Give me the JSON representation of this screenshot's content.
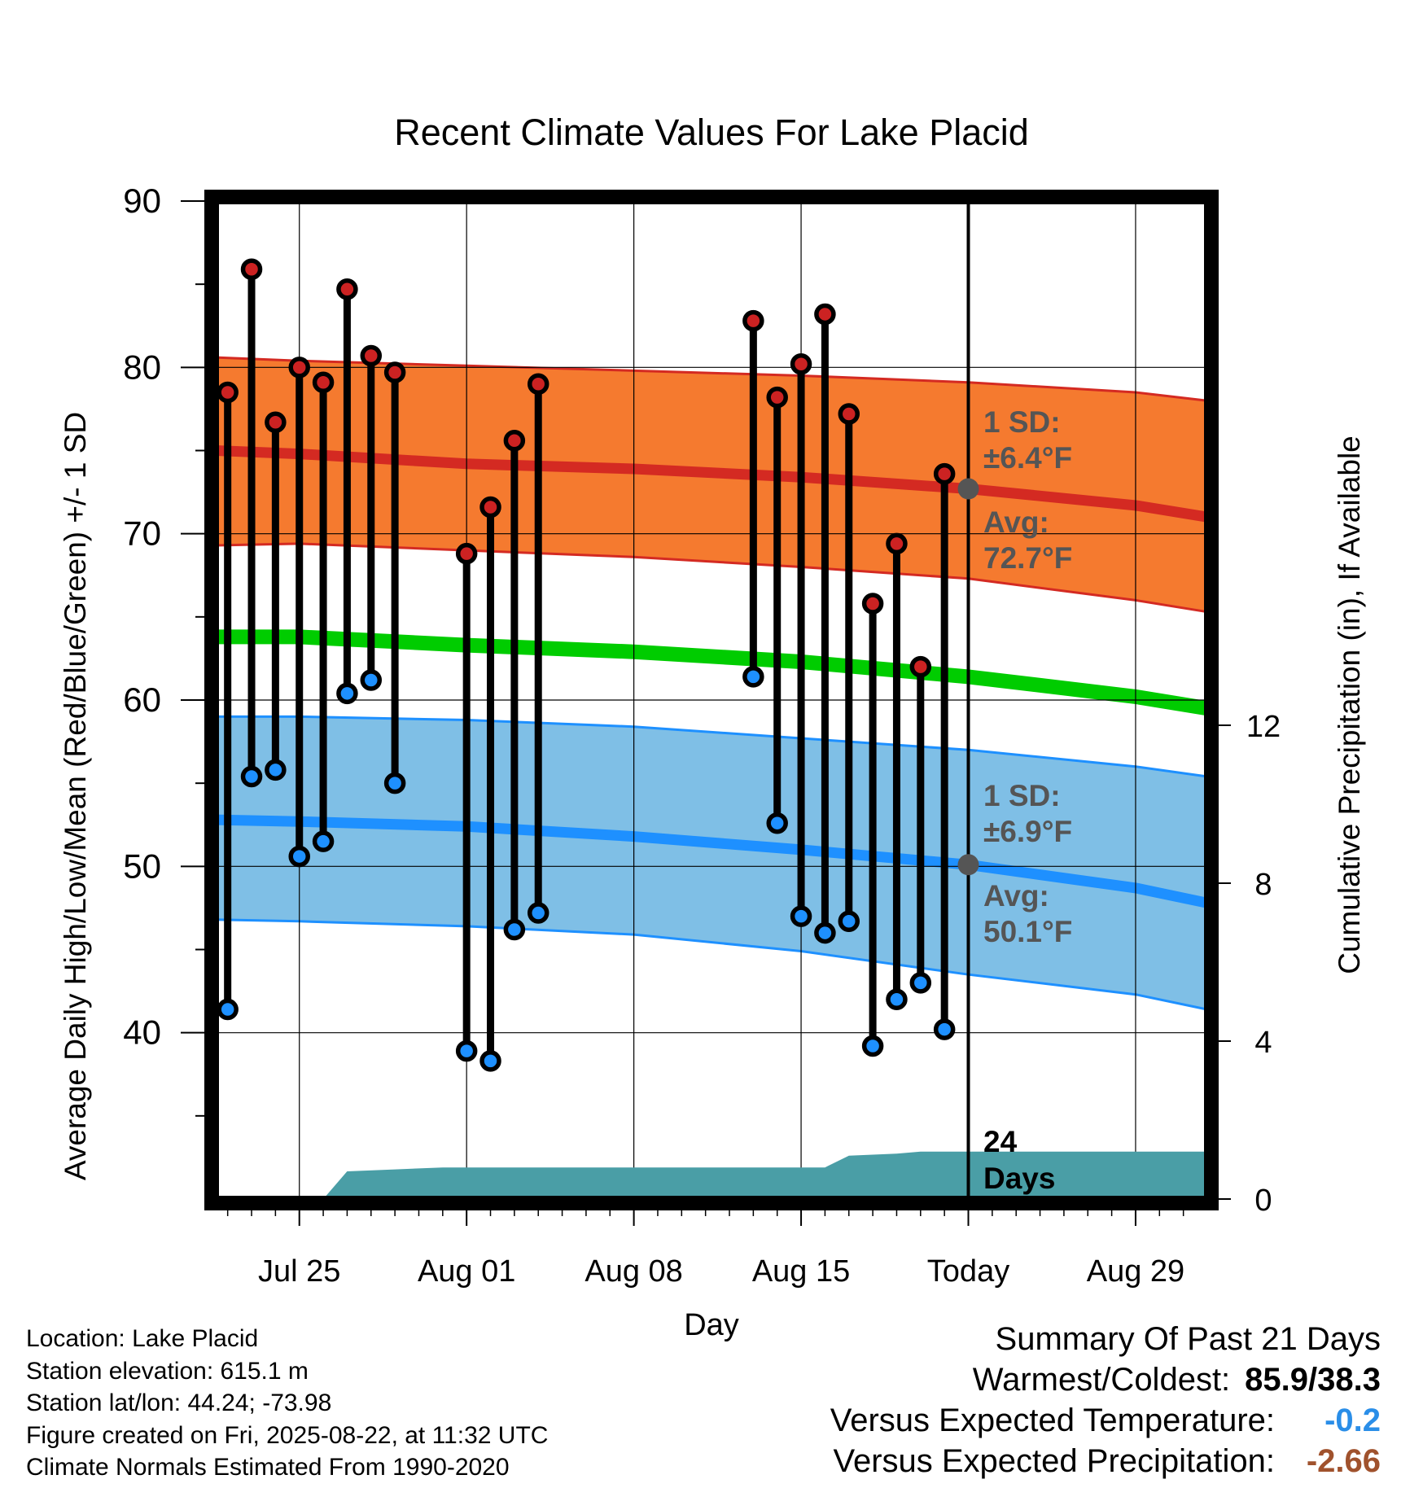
{
  "chart_data": {
    "type": "line",
    "title": "Recent Climate Values For Lake Placid",
    "xlabel": "Day",
    "ylabel_left": "Average Daily High/Low/Mean (Red/Blue/Green) +/- 1 SD",
    "ylabel_right": "Cumulative Precipitation (in), If Available",
    "ylim_left": [
      30,
      90
    ],
    "ylim_right": [
      0,
      24
    ],
    "xlim": [
      "2025-07-21T12:00",
      "2025-09-01"
    ],
    "x_ticks": [
      {
        "date": "2025-07-25",
        "label": "Jul 25"
      },
      {
        "date": "2025-08-01",
        "label": "Aug 01"
      },
      {
        "date": "2025-08-08",
        "label": "Aug 08"
      },
      {
        "date": "2025-08-15",
        "label": "Aug 15"
      },
      {
        "date": "2025-08-22",
        "label": "Today"
      },
      {
        "date": "2025-08-29",
        "label": "Aug 29"
      }
    ],
    "y_ticks_left": [
      40,
      50,
      60,
      70,
      80,
      90
    ],
    "y_ticks_right": [
      0,
      4,
      8,
      12
    ],
    "grid": true,
    "today": "2025-08-22",
    "today_annotation": "24 Days",
    "daily_observations": [
      {
        "date": "2025-07-22",
        "high": 78.5,
        "low": 41.4
      },
      {
        "date": "2025-07-23",
        "high": 85.9,
        "low": 55.4
      },
      {
        "date": "2025-07-24",
        "high": 76.7,
        "low": 55.8
      },
      {
        "date": "2025-07-25",
        "high": 80.0,
        "low": 50.6
      },
      {
        "date": "2025-07-26",
        "high": 79.1,
        "low": 51.5
      },
      {
        "date": "2025-07-27",
        "high": 84.7,
        "low": 60.4
      },
      {
        "date": "2025-07-28",
        "high": 80.7,
        "low": 61.2
      },
      {
        "date": "2025-07-29",
        "high": 79.7,
        "low": 55.0
      },
      {
        "date": "2025-08-01",
        "high": 68.8,
        "low": 38.9
      },
      {
        "date": "2025-08-02",
        "high": 71.6,
        "low": 38.3
      },
      {
        "date": "2025-08-03",
        "high": 75.6,
        "low": 46.2
      },
      {
        "date": "2025-08-04",
        "high": 79.0,
        "low": 47.2
      },
      {
        "date": "2025-08-13",
        "high": 82.8,
        "low": 61.4
      },
      {
        "date": "2025-08-14",
        "high": 78.2,
        "low": 52.6
      },
      {
        "date": "2025-08-15",
        "high": 80.2,
        "low": 47.0
      },
      {
        "date": "2025-08-16",
        "high": 83.2,
        "low": 46.0
      },
      {
        "date": "2025-08-17",
        "high": 77.2,
        "low": 46.7
      },
      {
        "date": "2025-08-18",
        "high": 65.8,
        "low": 39.2
      },
      {
        "date": "2025-08-19",
        "high": 69.4,
        "low": 42.0
      },
      {
        "date": "2025-08-20",
        "high": 62.0,
        "low": 43.0
      },
      {
        "date": "2025-08-21",
        "high": 73.6,
        "low": 40.2
      }
    ],
    "normals": [
      {
        "date": "2025-07-21T12:00",
        "high": 75.0,
        "high_upper": 80.6,
        "high_lower": 69.3,
        "low": 52.8,
        "low_upper": 59.0,
        "low_lower": 46.8,
        "mean": 63.8
      },
      {
        "date": "2025-07-25",
        "high": 74.8,
        "high_upper": 80.4,
        "high_lower": 69.4,
        "low": 52.7,
        "low_upper": 59.0,
        "low_lower": 46.7,
        "mean": 63.8
      },
      {
        "date": "2025-08-01",
        "high": 74.2,
        "high_upper": 80.1,
        "high_lower": 69.0,
        "low": 52.4,
        "low_upper": 58.8,
        "low_lower": 46.4,
        "mean": 63.3
      },
      {
        "date": "2025-08-08",
        "high": 73.9,
        "high_upper": 79.8,
        "high_lower": 68.6,
        "low": 51.8,
        "low_upper": 58.4,
        "low_lower": 45.9,
        "mean": 62.9
      },
      {
        "date": "2025-08-15",
        "high": 73.4,
        "high_upper": 79.5,
        "high_lower": 68.0,
        "low": 51.0,
        "low_upper": 57.7,
        "low_lower": 44.9,
        "mean": 62.3
      },
      {
        "date": "2025-08-22",
        "high": 72.7,
        "high_upper": 79.1,
        "high_lower": 67.3,
        "low": 50.1,
        "low_upper": 57.0,
        "low_lower": 43.5,
        "mean": 61.4
      },
      {
        "date": "2025-08-29",
        "high": 71.7,
        "high_upper": 78.5,
        "high_lower": 66.0,
        "low": 48.7,
        "low_upper": 56.0,
        "low_lower": 42.3,
        "mean": 60.2
      },
      {
        "date": "2025-09-01",
        "high": 71.0,
        "high_upper": 78.0,
        "high_lower": 65.3,
        "low": 47.8,
        "low_upper": 55.4,
        "low_lower": 41.4,
        "mean": 59.5
      }
    ],
    "cumulative_precipitation": [
      {
        "date": "2025-07-21T12:00",
        "value": 0.0
      },
      {
        "date": "2025-07-26",
        "value": 0.0
      },
      {
        "date": "2025-07-27",
        "value": 0.7
      },
      {
        "date": "2025-07-29",
        "value": 0.75
      },
      {
        "date": "2025-07-31",
        "value": 0.8
      },
      {
        "date": "2025-08-16",
        "value": 0.8
      },
      {
        "date": "2025-08-17",
        "value": 1.1
      },
      {
        "date": "2025-08-19",
        "value": 1.15
      },
      {
        "date": "2025-08-20",
        "value": 1.2
      },
      {
        "date": "2025-09-01",
        "value": 1.2
      }
    ],
    "annotations": {
      "high_sd_line1": "1 SD:",
      "high_sd_line2": "±6.4°F",
      "high_avg_line1": "Avg:",
      "high_avg_line2": "72.7°F",
      "low_sd_line1": "1 SD:",
      "low_sd_line2": "±6.9°F",
      "low_avg_line1": "Avg:",
      "low_avg_line2": "50.1°F",
      "today_line1": "24",
      "today_line2": "Days"
    },
    "colors": {
      "high_band": "#f57a2f",
      "high_line": "#d42a22",
      "low_band": "#7fbfe6",
      "low_line": "#1e90ff",
      "mean_line": "#00cc00",
      "precip": "#4a9ea6",
      "high_dot": "#cc2222",
      "low_dot": "#1e90ff",
      "annotation_text": "#555555"
    }
  },
  "footer": {
    "location": "Location: Lake Placid",
    "elevation": "Station elevation: 615.1 m",
    "latlon": "Station lat/lon: 44.24; -73.98",
    "created": "Figure created on Fri, 2025-08-22, at 11:32 UTC",
    "normals": "Climate Normals Estimated From 1990-2020"
  },
  "summary": {
    "title": "Summary Of Past 21 Days",
    "warmest_coldest_label": "Warmest/Coldest:",
    "warmest_coldest_value": "85.9/38.3",
    "temp_label": "Versus Expected Temperature:",
    "temp_value": "-0.2",
    "temp_color": "#2a8ee8",
    "precip_label": "Versus Expected Precipitation:",
    "precip_value": "-2.66",
    "precip_color": "#a0522d"
  }
}
